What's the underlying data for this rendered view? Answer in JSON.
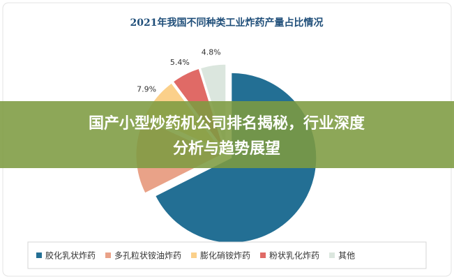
{
  "chart_data": {
    "type": "pie",
    "title": "2021年我国不同种类工业炸药产量占比情况",
    "categories": [
      "胶化乳状炸药",
      "多孔粒状铵油炸药",
      "膨化硝铵炸药",
      "粉状乳化炸药",
      "其他"
    ],
    "values": [
      67.6,
      14.3,
      7.9,
      5.4,
      4.8
    ],
    "value_labels": [
      null,
      null,
      "7.9%",
      "5.4%",
      "4.8%"
    ],
    "colors": [
      "#236f94",
      "#e9a288",
      "#fbd08a",
      "#e06a66",
      "#dbe6de"
    ],
    "legend": "bottom"
  },
  "banner": {
    "lines": [
      "国产小型炒药机公司排名揭秘，行业深度",
      "分析与趋势展望"
    ]
  }
}
